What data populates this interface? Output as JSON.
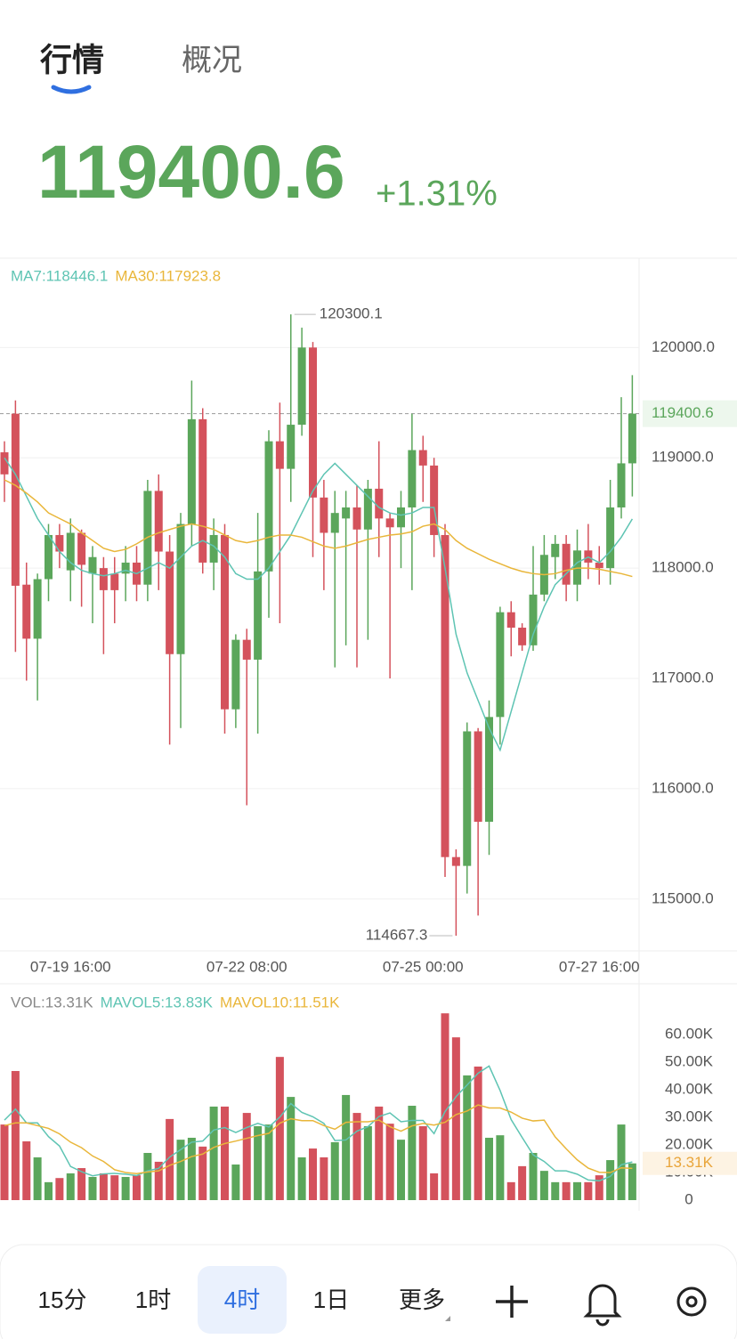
{
  "tabs": [
    "行情",
    "概况"
  ],
  "quote": {
    "price": "119400.6",
    "change": "+1.31%"
  },
  "chart_data": [
    {
      "type": "candlestick",
      "categories": [
        null,
        null,
        null,
        null,
        null,
        null,
        "07-19 16:00",
        null,
        null,
        null,
        null,
        null,
        null,
        null,
        null,
        null,
        null,
        null,
        null,
        null,
        null,
        null,
        "07-22 08:00",
        null,
        null,
        null,
        null,
        null,
        null,
        null,
        null,
        null,
        null,
        null,
        null,
        null,
        null,
        null,
        "07-25 00:00",
        null,
        null,
        null,
        null,
        null,
        null,
        null,
        null,
        null,
        null,
        null,
        null,
        null,
        null,
        null,
        "07-27 16:00",
        null,
        null,
        null
      ],
      "open": [
        119050,
        119400,
        117850,
        117360,
        117900,
        118300,
        117980,
        118320,
        117950,
        118000,
        117950,
        117950,
        118050,
        117850,
        118700,
        118150,
        117220,
        118400,
        119350,
        118050,
        118300,
        116720,
        117350,
        117170,
        117970,
        119150,
        118900,
        119300,
        120000,
        118640,
        118320,
        118450,
        118550,
        118350,
        118720,
        118450,
        118370,
        118550,
        119070,
        118930,
        118300,
        115380,
        115300,
        116520,
        115700,
        116650,
        117600,
        117460,
        117300,
        117760,
        118100,
        118220,
        117850,
        118160,
        118050,
        118000,
        118550,
        118950
      ],
      "high": [
        119150,
        119520,
        118050,
        117950,
        118400,
        118400,
        118450,
        118350,
        118200,
        118100,
        118100,
        118200,
        118200,
        118800,
        118850,
        118300,
        118500,
        119700,
        119450,
        118450,
        118400,
        117400,
        117450,
        118500,
        119250,
        119500,
        120300.1,
        120180,
        120050,
        118800,
        118700,
        118700,
        118750,
        118800,
        119150,
        118500,
        118700,
        119400,
        119200,
        119000,
        118400,
        115450,
        116600,
        116550,
        116800,
        117650,
        117700,
        117500,
        118200,
        118300,
        118300,
        118300,
        118350,
        118400,
        118200,
        118800,
        119550,
        119750
      ],
      "low": [
        118600,
        117240,
        116980,
        116800,
        117700,
        118000,
        117700,
        117650,
        117500,
        117220,
        117500,
        117700,
        117700,
        117700,
        117800,
        116400,
        116550,
        118200,
        117950,
        117800,
        116500,
        116550,
        115850,
        116500,
        117550,
        117500,
        118600,
        119200,
        118100,
        117800,
        117100,
        117300,
        117100,
        117350,
        118100,
        117000,
        118000,
        117800,
        118600,
        118100,
        115200,
        114667.3,
        115050,
        114850,
        115400,
        116400,
        117200,
        117250,
        117250,
        117700,
        117900,
        117700,
        117700,
        117900,
        117850,
        117850,
        118450,
        118650
      ],
      "close": [
        118850,
        117840,
        117360,
        117900,
        118300,
        118150,
        118320,
        118030,
        118100,
        117800,
        117800,
        118050,
        117850,
        118700,
        118150,
        117220,
        118400,
        119350,
        118050,
        118300,
        116720,
        117350,
        117170,
        117970,
        119150,
        118900,
        119300,
        120000,
        118640,
        118320,
        118500,
        118550,
        118350,
        118720,
        118450,
        118370,
        118550,
        119070,
        118930,
        118300,
        115380,
        115300,
        116520,
        115700,
        116650,
        117600,
        117460,
        117300,
        117760,
        118120,
        118220,
        117850,
        118160,
        118050,
        118000,
        118550,
        118950,
        119400.6
      ],
      "up_color": "#5ba65b",
      "down_color": "#d4525c",
      "ylim": [
        114530,
        120810
      ],
      "yticks": [
        {
          "value": 115000,
          "label": "115000.0"
        },
        {
          "value": 116000,
          "label": "116000.0"
        },
        {
          "value": 117000,
          "label": "117000.0"
        },
        {
          "value": 118000,
          "label": "118000.0"
        },
        {
          "value": 119000,
          "label": "119000.0"
        },
        {
          "value": 120000,
          "label": "120000.0"
        }
      ],
      "grid": true,
      "series": [
        {
          "name": "MA7:118446.1",
          "color": "#5ec4b3",
          "values": [
            119000,
            118850,
            118650,
            118450,
            118300,
            118150,
            118050,
            117980,
            117950,
            117930,
            117950,
            117980,
            117950,
            118000,
            118050,
            118000,
            118100,
            118200,
            118250,
            118200,
            118100,
            117950,
            117900,
            117900,
            118000,
            118150,
            118300,
            118500,
            118700,
            118850,
            118950,
            118850,
            118750,
            118650,
            118550,
            118500,
            118480,
            118500,
            118550,
            118550,
            118000,
            117400,
            117050,
            116800,
            116550,
            116350,
            116700,
            117050,
            117400,
            117650,
            117850,
            117950,
            118050,
            118100,
            118050,
            118150,
            118280,
            118446.1
          ]
        },
        {
          "name": "MA30:117923.8",
          "color": "#e9b63a",
          "values": [
            118800,
            118750,
            118680,
            118600,
            118500,
            118450,
            118400,
            118320,
            118250,
            118180,
            118150,
            118170,
            118220,
            118280,
            118320,
            118350,
            118380,
            118400,
            118380,
            118350,
            118300,
            118250,
            118230,
            118250,
            118280,
            118300,
            118300,
            118280,
            118240,
            118200,
            118180,
            118200,
            118230,
            118260,
            118280,
            118300,
            118310,
            118330,
            118380,
            118400,
            118350,
            118250,
            118180,
            118130,
            118080,
            118040,
            118000,
            117970,
            117950,
            117940,
            117950,
            117980,
            118000,
            118000,
            117990,
            117970,
            117950,
            117923.8
          ]
        }
      ]
    },
    {
      "type": "bar",
      "name": "VOL:13.31K",
      "current_label": "13.31K",
      "values": [
        27400,
        46800,
        21300,
        15500,
        6500,
        8000,
        9700,
        11600,
        8400,
        9700,
        9000,
        8400,
        9000,
        17100,
        13900,
        29400,
        21900,
        22600,
        19400,
        33900,
        33900,
        12900,
        31600,
        26800,
        27400,
        51900,
        37400,
        15500,
        18700,
        15500,
        21000,
        38100,
        31600,
        26800,
        33900,
        27700,
        21900,
        34200,
        26800,
        9700,
        67700,
        59000,
        45200,
        48400,
        22600,
        23500,
        6500,
        12300,
        17100,
        10600,
        6500,
        6500,
        6500,
        6500,
        9000,
        14500,
        27400,
        13310
      ],
      "ylim": [
        0,
        76800
      ],
      "yticks": [
        0,
        {
          "value": 10000,
          "label": "10.00K"
        },
        {
          "value": 20000,
          "label": "20.00K"
        },
        {
          "value": 30000,
          "label": "30.00K"
        },
        {
          "value": 40000,
          "label": "40.00K"
        },
        {
          "value": 50000,
          "label": "50.00K"
        },
        {
          "value": 60000,
          "label": "60.00K"
        }
      ],
      "series": [
        {
          "name": "MAVOL5:13.83K",
          "color": "#5ec4b3",
          "values": [
            29000,
            33000,
            28000,
            28000,
            23000,
            19600,
            12200,
            10300,
            8800,
            9500,
            9700,
            9400,
            8900,
            10600,
            11500,
            15600,
            18300,
            21000,
            21400,
            25400,
            26300,
            24500,
            26300,
            27800,
            26500,
            30100,
            35000,
            31800,
            30200,
            27800,
            21600,
            21800,
            25000,
            26600,
            30300,
            31600,
            28400,
            28900,
            28900,
            24100,
            32100,
            37500,
            41700,
            46000,
            48600,
            39700,
            29200,
            22700,
            16400,
            14000,
            10600,
            10600,
            9400,
            7300,
            7000,
            8600,
            12800,
            13830
          ]
        },
        {
          "name": "MAVOL10:11.51K",
          "color": "#e9b63a",
          "values": [
            27000,
            28000,
            28000,
            27000,
            26000,
            24000,
            21000,
            19000,
            16000,
            14000,
            11000,
            10000,
            9600,
            10200,
            10600,
            12600,
            14000,
            15800,
            16700,
            19100,
            20500,
            21400,
            22400,
            23400,
            24200,
            27900,
            29500,
            28800,
            28800,
            27000,
            25700,
            28200,
            28400,
            28400,
            29000,
            26600,
            25000,
            26900,
            27800,
            27200,
            28200,
            31000,
            32300,
            34500,
            33400,
            33400,
            31900,
            29700,
            28700,
            29000,
            22900,
            18600,
            14600,
            11600,
            10100,
            10000,
            11700,
            11510
          ]
        }
      ]
    }
  ],
  "toolbar": [
    "15分",
    "1时",
    "4时",
    "1日",
    "更多"
  ]
}
